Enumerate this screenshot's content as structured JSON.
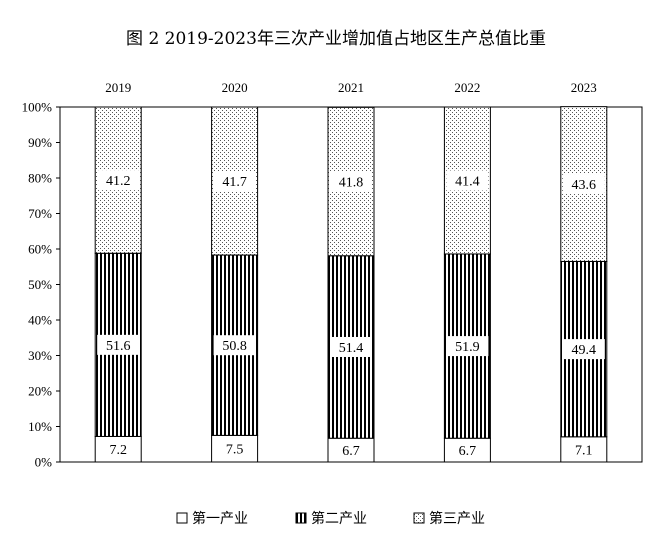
{
  "chart_data": {
    "type": "bar",
    "stacked": true,
    "title": "图 2  2019-2023年三次产业增加值占地区生产总值比重",
    "categories": [
      "2019",
      "2020",
      "2021",
      "2022",
      "2023"
    ],
    "series": [
      {
        "name": "第一产业",
        "values": [
          7.2,
          7.5,
          6.7,
          6.7,
          7.1
        ],
        "pattern": "blank"
      },
      {
        "name": "第二产业",
        "values": [
          51.6,
          50.8,
          51.4,
          51.9,
          49.4
        ],
        "pattern": "vertical-stripes"
      },
      {
        "name": "第三产业",
        "values": [
          41.2,
          41.7,
          41.8,
          41.4,
          43.6
        ],
        "pattern": "dots"
      }
    ],
    "y_ticks": [
      "0%",
      "10%",
      "20%",
      "30%",
      "40%",
      "50%",
      "60%",
      "70%",
      "80%",
      "90%",
      "100%"
    ],
    "ylim": [
      0,
      100
    ],
    "category_axis_position": "top",
    "legend_position": "bottom",
    "grid": false
  }
}
